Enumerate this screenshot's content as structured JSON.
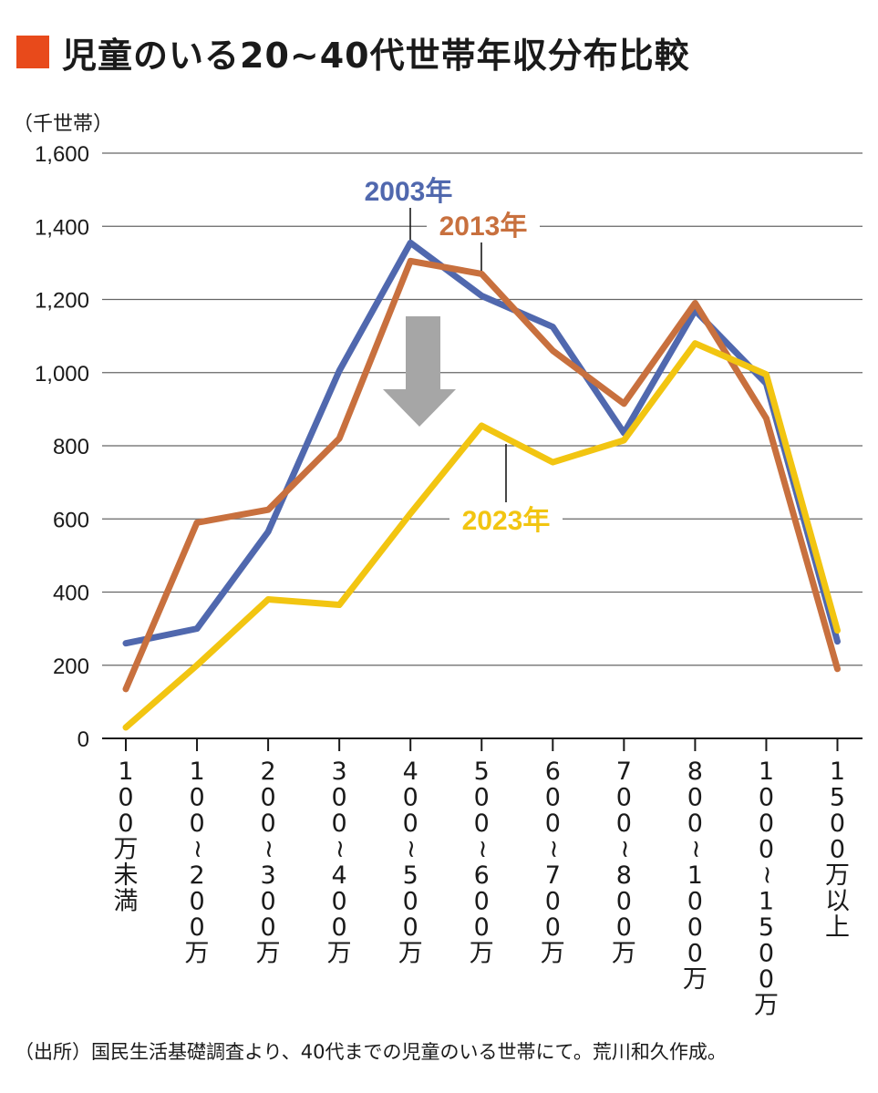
{
  "title": "児童のいる20~40代世帯年収分布比較",
  "unit": "（千世帯）",
  "source": "（出所）国民生活基礎調査より、40代までの児童のいる世帯にて。荒川和久作成。",
  "colors": {
    "title_square": "#e84a1b",
    "grid": "#666666",
    "arrow": "#a6a6a6"
  },
  "chart_data": {
    "type": "line",
    "categories": [
      "100万未満",
      "100~200万",
      "200~300万",
      "300~400万",
      "400~500万",
      "500~600万",
      "600~700万",
      "700~800万",
      "800~1000万",
      "1000~1500万",
      "1500万以上"
    ],
    "series": [
      {
        "name": "2003年",
        "color": "#5068ae",
        "values": [
          260,
          300,
          565,
          1005,
          1355,
          1210,
          1125,
          835,
          1170,
          970,
          265
        ]
      },
      {
        "name": "2013年",
        "color": "#c8703e",
        "values": [
          135,
          590,
          625,
          820,
          1305,
          1270,
          1060,
          915,
          1190,
          875,
          190
        ]
      },
      {
        "name": "2023年",
        "color": "#f2c511",
        "values": [
          30,
          200,
          380,
          365,
          615,
          855,
          755,
          815,
          1080,
          995,
          295
        ]
      }
    ],
    "ylim": [
      0,
      1600
    ],
    "yticks": [
      0,
      200,
      400,
      600,
      800,
      1000,
      1200,
      1400,
      1600
    ],
    "ytick_labels": [
      "0",
      "200",
      "400",
      "600",
      "800",
      "1,000",
      "1,200",
      "1,400",
      "1,600"
    ],
    "grid": true,
    "annotations": [
      "down-arrow"
    ]
  }
}
